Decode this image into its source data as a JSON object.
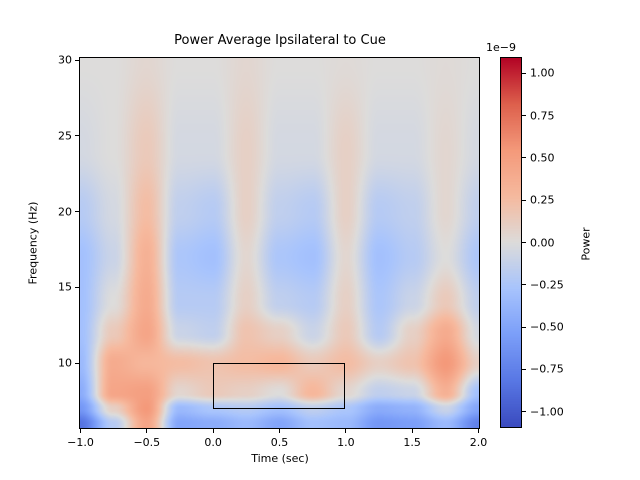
{
  "chart_data": {
    "type": "heatmap",
    "title": "Power Average Ipsilateral to Cue",
    "xlabel": "Time (sec)",
    "ylabel": "Frequency (Hz)",
    "colorbar_label": "Power",
    "scale_label": "1e−9",
    "xlim": [
      -1.0,
      2.0
    ],
    "ylim": [
      5.7,
      30
    ],
    "clim": [
      -1.09,
      1.09
    ],
    "colormap": "coolwarm",
    "color_min": "#3b4cc0",
    "color_mid": "#dddcdb",
    "color_max": "#b40426",
    "x_ticks": [
      -1.0,
      -0.5,
      0.0,
      0.5,
      1.0,
      1.5,
      2.0
    ],
    "x_tick_labels": [
      "−1.0",
      "−0.5",
      "0.0",
      "0.5",
      "1.0",
      "1.5",
      "2.0"
    ],
    "y_ticks": [
      10,
      15,
      20,
      25,
      30
    ],
    "y_tick_labels": [
      "10",
      "15",
      "20",
      "25",
      "30"
    ],
    "colorbar_ticks": [
      1.0,
      0.75,
      0.5,
      0.25,
      0.0,
      -0.25,
      -0.5,
      -0.75,
      -1.0
    ],
    "colorbar_tick_labels": [
      "1.00",
      "0.75",
      "0.50",
      "0.25",
      "0.00",
      "−0.25",
      "−0.50",
      "−0.75",
      "−1.00"
    ],
    "roi": {
      "t_start": 0.0,
      "t_end": 1.0,
      "f_low": 7,
      "f_high": 10
    },
    "times": [
      -1.0,
      -0.75,
      -0.5,
      -0.25,
      0.0,
      0.25,
      0.5,
      0.75,
      1.0,
      1.25,
      1.5,
      1.75,
      2.0
    ],
    "freqs": [
      6,
      7,
      8,
      10,
      12,
      14,
      17,
      20,
      24,
      30
    ],
    "values_unit": "1e-9",
    "values": [
      [
        -0.85,
        -0.2,
        0.45,
        -0.5,
        -0.45,
        -0.35,
        -0.5,
        -0.3,
        -0.35,
        -0.6,
        -0.55,
        -0.35,
        -0.75
      ],
      [
        -0.6,
        0.1,
        0.55,
        -0.35,
        -0.25,
        -0.2,
        -0.3,
        -0.15,
        -0.25,
        -0.45,
        -0.4,
        -0.1,
        -0.5
      ],
      [
        -0.45,
        0.45,
        0.5,
        0.05,
        0.15,
        0.1,
        0.0,
        0.3,
        0.05,
        -0.15,
        -0.1,
        0.35,
        -0.3
      ],
      [
        -0.35,
        0.4,
        0.3,
        0.25,
        0.2,
        0.25,
        0.3,
        0.15,
        0.25,
        0.1,
        0.2,
        0.55,
        0.1
      ],
      [
        -0.3,
        0.15,
        0.45,
        -0.1,
        -0.15,
        0.2,
        0.1,
        -0.1,
        0.15,
        -0.2,
        0.1,
        0.4,
        -0.05
      ],
      [
        -0.3,
        0.0,
        0.4,
        -0.2,
        -0.2,
        0.1,
        -0.15,
        -0.2,
        0.1,
        -0.25,
        -0.1,
        0.15,
        -0.15
      ],
      [
        -0.3,
        -0.1,
        0.35,
        -0.25,
        -0.3,
        0.05,
        -0.25,
        -0.3,
        0.05,
        -0.3,
        -0.2,
        0.0,
        -0.25
      ],
      [
        -0.2,
        -0.05,
        0.25,
        -0.15,
        -0.2,
        0.1,
        -0.15,
        -0.2,
        0.1,
        -0.2,
        -0.15,
        0.05,
        -0.15
      ],
      [
        -0.05,
        0.0,
        0.15,
        -0.05,
        -0.05,
        0.1,
        -0.05,
        -0.05,
        0.1,
        -0.05,
        -0.05,
        0.05,
        -0.05
      ],
      [
        0.0,
        0.0,
        0.05,
        0.0,
        0.0,
        0.05,
        0.0,
        0.0,
        0.02,
        0.0,
        0.0,
        0.02,
        0.0
      ]
    ]
  }
}
